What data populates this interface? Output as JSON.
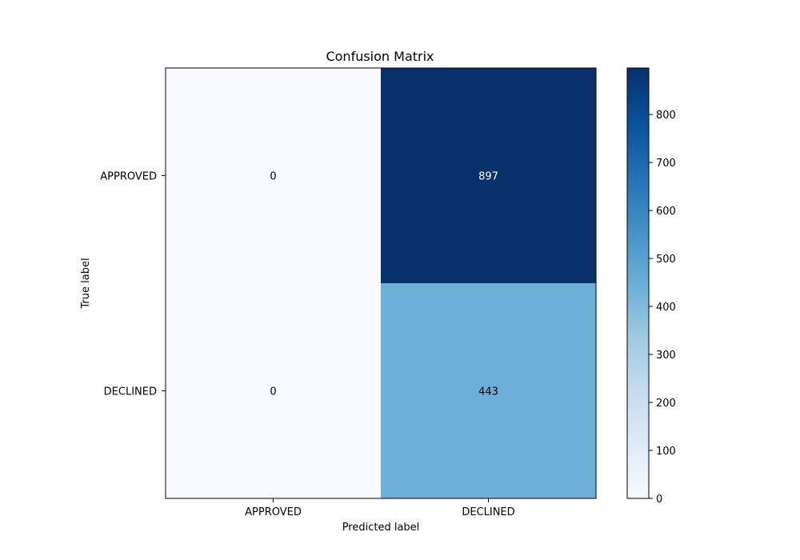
{
  "chart_data": {
    "type": "heatmap",
    "title": "Confusion Matrix",
    "xlabel": "Predicted label",
    "ylabel": "True label",
    "x_categories": [
      "APPROVED",
      "DECLINED"
    ],
    "y_categories": [
      "APPROVED",
      "DECLINED"
    ],
    "values": [
      [
        0,
        897
      ],
      [
        0,
        443
      ]
    ],
    "colorscale": "Blues",
    "colorbar": {
      "min": 0,
      "max": 897,
      "ticks": [
        0,
        100,
        200,
        300,
        400,
        500,
        600,
        700,
        800
      ]
    },
    "colors": {
      "low_text": "#000000",
      "high_text": "#ffffff"
    }
  }
}
